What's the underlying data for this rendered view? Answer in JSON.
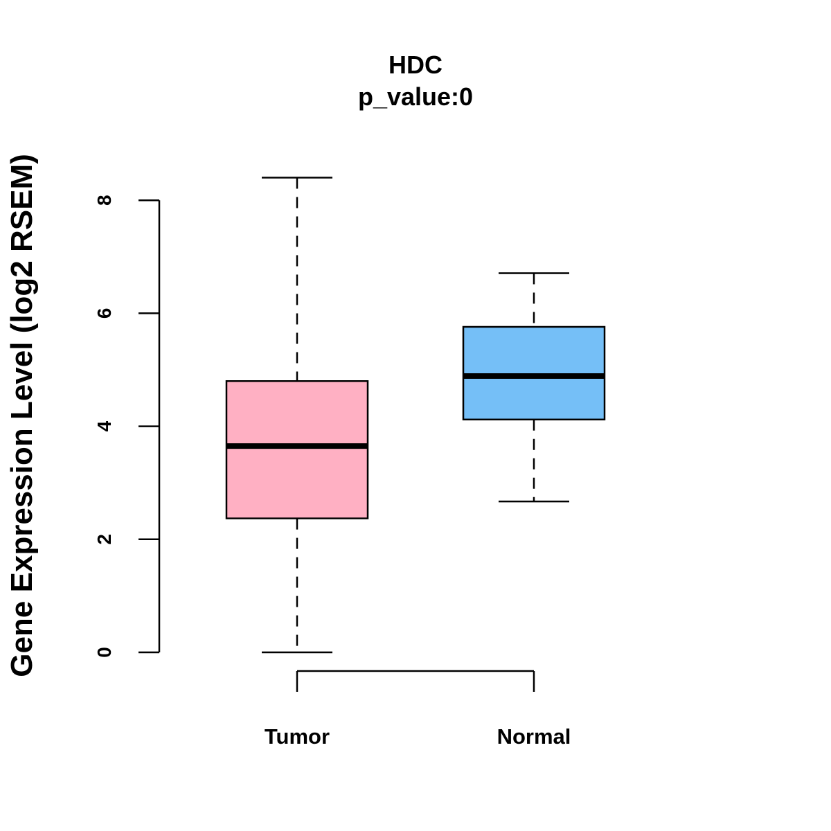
{
  "chart_data": {
    "type": "boxplot",
    "title": "HDC",
    "subtitle": "p_value:0",
    "ylabel": "Gene Expression Level (log2 RSEM)",
    "xlabel": "",
    "ylim": [
      0,
      8.4
    ],
    "yticks": [
      0,
      2,
      4,
      6,
      8
    ],
    "grid": false,
    "categories": [
      "Tumor",
      "Normal"
    ],
    "boxes": [
      {
        "category": "Tumor",
        "min": 0.0,
        "q1": 2.37,
        "median": 3.65,
        "q3": 4.8,
        "max": 8.4,
        "color": "#FFB0C3"
      },
      {
        "category": "Normal",
        "min": 2.67,
        "q1": 4.12,
        "median": 4.89,
        "q3": 5.76,
        "max": 6.71,
        "color": "#75BFF7"
      }
    ]
  }
}
